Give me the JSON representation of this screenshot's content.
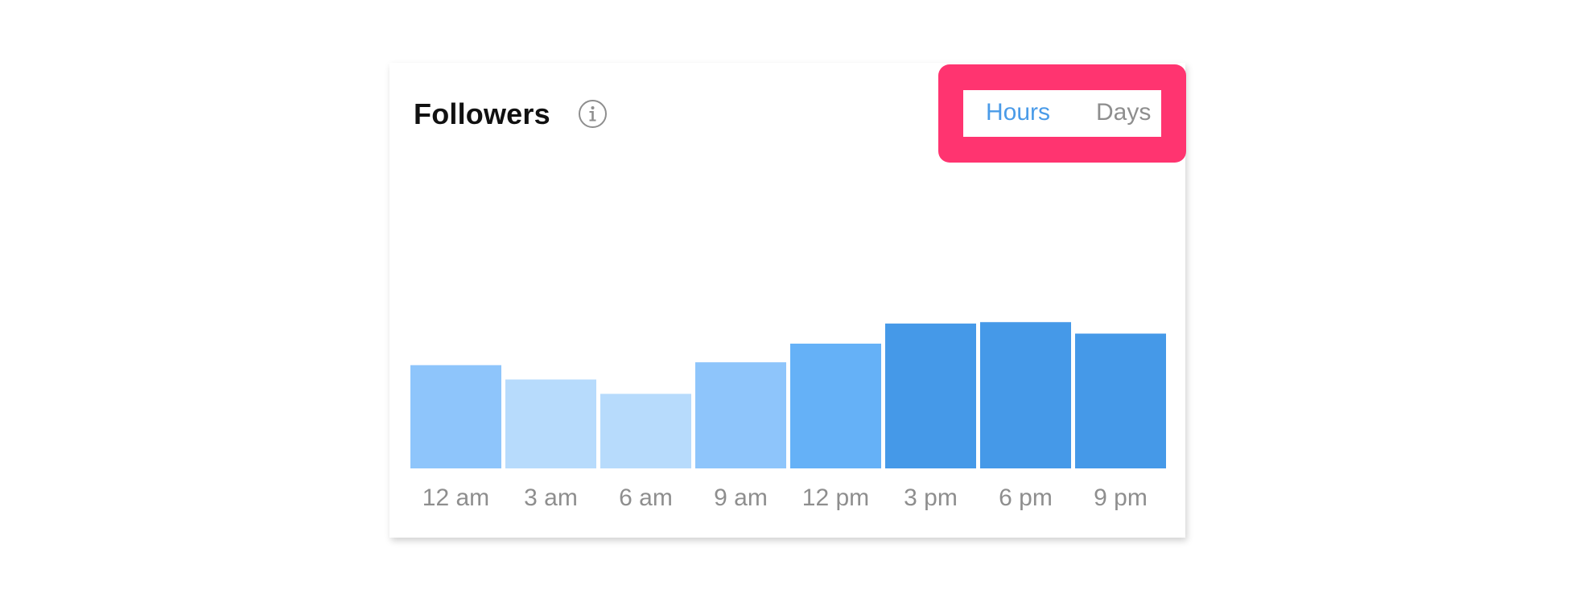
{
  "header": {
    "title": "Followers",
    "info_icon": "info-icon"
  },
  "toggle": {
    "hours_label": "Hours",
    "days_label": "Days",
    "selected": "Hours",
    "active_color": "#4a9be8",
    "inactive_color": "#8e8e8e",
    "highlight_color": "#ff3470"
  },
  "chart_data": {
    "type": "bar",
    "title": "",
    "xlabel": "",
    "ylabel": "",
    "categories": [
      "12 am",
      "3 am",
      "6 am",
      "9 am",
      "12 pm",
      "3 pm",
      "6 pm",
      "9 pm"
    ],
    "values": [
      72,
      62,
      52,
      74,
      87,
      101,
      102,
      94
    ],
    "ylim": [
      0,
      220
    ],
    "grid": false,
    "bar_colors": [
      "#8ec5fb",
      "#b7dbfc",
      "#b7dbfc",
      "#8ec5fb",
      "#65b1f7",
      "#4599e8",
      "#4599e8",
      "#4599e8"
    ]
  }
}
